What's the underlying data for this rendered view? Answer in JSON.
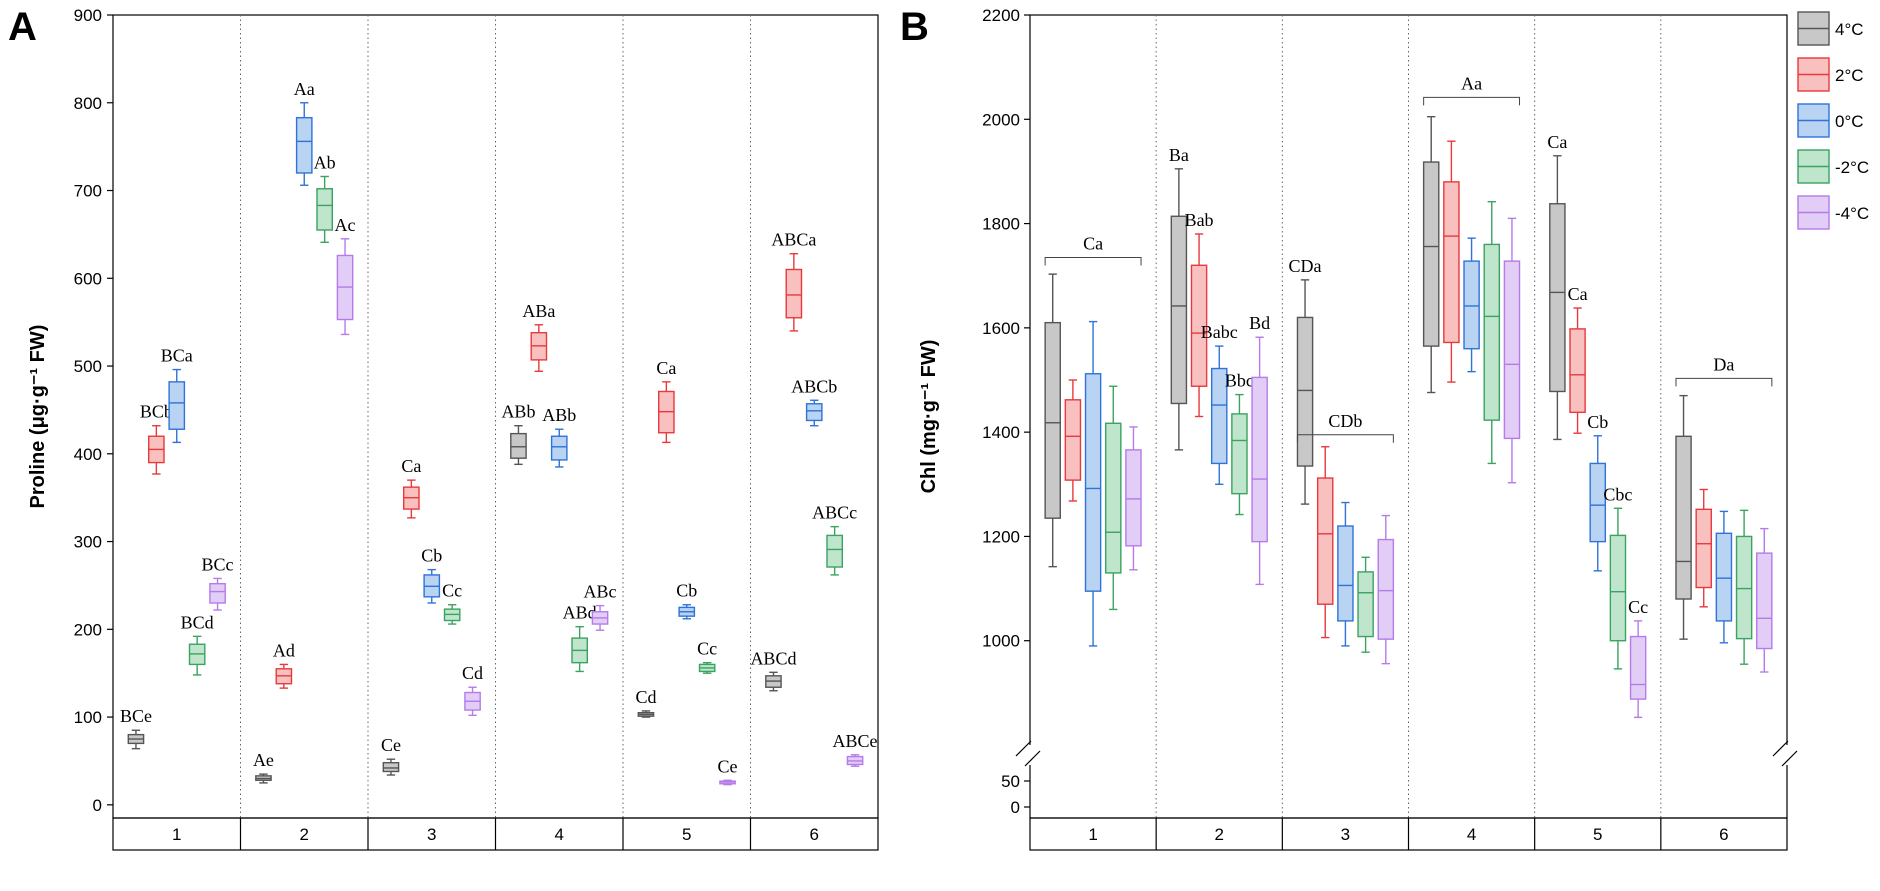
{
  "figure": {
    "panel_a": "A",
    "panel_b": "B"
  },
  "colors": {
    "4C": {
      "edge": "#555555",
      "fill": "#c8c8c8"
    },
    "2C": {
      "edge": "#e8393c",
      "fill": "#f9c0c0"
    },
    "0C": {
      "edge": "#2f73d8",
      "fill": "#b9d3f3"
    },
    "m2C": {
      "edge": "#3aa35f",
      "fill": "#bfe6cd"
    },
    "m4C": {
      "edge": "#b57be8",
      "fill": "#e2cdf6"
    }
  },
  "legend": {
    "entries": [
      {
        "label": "4°C",
        "key": "4C"
      },
      {
        "label": "2°C",
        "key": "2C"
      },
      {
        "label": "0°C",
        "key": "0C"
      },
      {
        "label": "-2°C",
        "key": "m2C"
      },
      {
        "label": "-4°C",
        "key": "m4C"
      }
    ],
    "placement": "top-right"
  },
  "chart_data": [
    {
      "type": "box",
      "panel": "A",
      "ylabel": "Proline (μg·g⁻¹ FW)",
      "ylim": [
        0,
        900
      ],
      "yticks": [
        0,
        100,
        200,
        300,
        400,
        500,
        600,
        700,
        800,
        900
      ],
      "categories": [
        "1",
        "2",
        "3",
        "4",
        "5",
        "6"
      ],
      "series_keys": [
        "4C",
        "2C",
        "0C",
        "m2C",
        "m4C"
      ],
      "boxes": [
        {
          "group": "1",
          "key": "4C",
          "q": [
            64,
            70,
            75,
            80,
            85
          ],
          "label": "BCe"
        },
        {
          "group": "1",
          "key": "2C",
          "q": [
            377,
            390,
            405,
            420,
            432
          ],
          "label": "BCb"
        },
        {
          "group": "1",
          "key": "0C",
          "q": [
            413,
            428,
            458,
            482,
            496
          ],
          "label": "BCa"
        },
        {
          "group": "1",
          "key": "m2C",
          "q": [
            148,
            160,
            172,
            183,
            192
          ],
          "label": "BCd"
        },
        {
          "group": "1",
          "key": "m4C",
          "q": [
            222,
            230,
            243,
            252,
            258
          ],
          "label": "BCc"
        },
        {
          "group": "2",
          "key": "4C",
          "q": [
            25,
            28,
            30,
            33,
            35
          ],
          "label": "Ae"
        },
        {
          "group": "2",
          "key": "2C",
          "q": [
            133,
            138,
            147,
            155,
            160
          ],
          "label": "Ad"
        },
        {
          "group": "2",
          "key": "0C",
          "q": [
            706,
            720,
            756,
            783,
            800
          ],
          "label": "Aa"
        },
        {
          "group": "2",
          "key": "m2C",
          "q": [
            641,
            655,
            683,
            702,
            716
          ],
          "label": "Ab"
        },
        {
          "group": "2",
          "key": "m4C",
          "q": [
            536,
            553,
            590,
            626,
            645
          ],
          "label": "Ac"
        },
        {
          "group": "3",
          "key": "4C",
          "q": [
            34,
            38,
            42,
            48,
            52
          ],
          "label": "Ce"
        },
        {
          "group": "3",
          "key": "2C",
          "q": [
            327,
            337,
            350,
            362,
            370
          ],
          "label": "Ca"
        },
        {
          "group": "3",
          "key": "0C",
          "q": [
            230,
            237,
            249,
            262,
            268
          ],
          "label": "Cb"
        },
        {
          "group": "3",
          "key": "m2C",
          "q": [
            206,
            210,
            217,
            223,
            228
          ],
          "label": "Cc"
        },
        {
          "group": "3",
          "key": "m4C",
          "q": [
            102,
            108,
            118,
            128,
            134
          ],
          "label": "Cd"
        },
        {
          "group": "4",
          "key": "4C",
          "q": [
            388,
            395,
            408,
            423,
            432
          ],
          "label": "ABb"
        },
        {
          "group": "4",
          "key": "2C",
          "q": [
            494,
            507,
            523,
            538,
            547
          ],
          "label": "ABa"
        },
        {
          "group": "4",
          "key": "0C",
          "q": [
            385,
            393,
            408,
            420,
            428
          ],
          "label": "ABb"
        },
        {
          "group": "4",
          "key": "m2C",
          "q": [
            152,
            162,
            176,
            190,
            203
          ],
          "label": "ABd"
        },
        {
          "group": "4",
          "key": "m4C",
          "q": [
            199,
            206,
            213,
            220,
            227
          ],
          "label": "ABc"
        },
        {
          "group": "5",
          "key": "4C",
          "q": [
            100,
            101,
            103,
            105,
            107
          ],
          "label": "Cd"
        },
        {
          "group": "5",
          "key": "2C",
          "q": [
            413,
            424,
            448,
            471,
            482
          ],
          "label": "Ca"
        },
        {
          "group": "5",
          "key": "0C",
          "q": [
            212,
            215,
            220,
            225,
            228
          ],
          "label": "Cb"
        },
        {
          "group": "5",
          "key": "m2C",
          "q": [
            150,
            152,
            156,
            160,
            162
          ],
          "label": "Cc"
        },
        {
          "group": "5",
          "key": "m4C",
          "q": [
            23,
            24,
            26,
            27,
            28
          ],
          "label": "Ce"
        },
        {
          "group": "6",
          "key": "4C",
          "q": [
            130,
            134,
            141,
            147,
            151
          ],
          "label": "ABCd"
        },
        {
          "group": "6",
          "key": "2C",
          "q": [
            540,
            555,
            581,
            610,
            628
          ],
          "label": "ABCa"
        },
        {
          "group": "6",
          "key": "0C",
          "q": [
            432,
            438,
            449,
            457,
            461
          ],
          "label": "ABCb"
        },
        {
          "group": "6",
          "key": "m2C",
          "q": [
            262,
            271,
            291,
            307,
            317
          ],
          "label": "ABCc"
        },
        {
          "group": "6",
          "key": "m4C",
          "q": [
            44,
            46,
            50,
            55,
            57
          ],
          "label": "ABCe"
        }
      ]
    },
    {
      "type": "box",
      "panel": "B",
      "ylabel": "Chl (mg·g⁻¹ FW)",
      "ylim_upper": [
        800,
        2200
      ],
      "ylim_lower": [
        0,
        50
      ],
      "axis_break": "between 50 and 800",
      "yticks_upper": [
        1000,
        1200,
        1400,
        1600,
        1800,
        2000,
        2200
      ],
      "yticks_lower": [
        0,
        50
      ],
      "categories": [
        "1",
        "2",
        "3",
        "4",
        "5",
        "6"
      ],
      "series_keys": [
        "4C",
        "2C",
        "0C",
        "m2C",
        "m4C"
      ],
      "group_labels": [
        {
          "group": "1",
          "label": "Ca",
          "y": 1735
        },
        {
          "group": "3",
          "label": "CDb",
          "y": 1395
        },
        {
          "group": "4",
          "label": "Aa",
          "y": 2042
        },
        {
          "group": "6",
          "label": "Da",
          "y": 1503
        }
      ],
      "boxes": [
        {
          "group": "1",
          "key": "4C",
          "q": [
            1142,
            1235,
            1418,
            1610,
            1703
          ],
          "label": ""
        },
        {
          "group": "1",
          "key": "2C",
          "q": [
            1268,
            1308,
            1392,
            1462,
            1500
          ],
          "label": ""
        },
        {
          "group": "1",
          "key": "0C",
          "q": [
            990,
            1095,
            1292,
            1512,
            1612
          ],
          "label": ""
        },
        {
          "group": "1",
          "key": "m2C",
          "q": [
            1060,
            1130,
            1208,
            1417,
            1488
          ],
          "label": ""
        },
        {
          "group": "1",
          "key": "m4C",
          "q": [
            1136,
            1182,
            1272,
            1366,
            1410
          ],
          "label": ""
        },
        {
          "group": "2",
          "key": "4C",
          "q": [
            1366,
            1455,
            1642,
            1814,
            1905
          ],
          "label": "Ba"
        },
        {
          "group": "2",
          "key": "2C",
          "q": [
            1430,
            1488,
            1590,
            1720,
            1780
          ],
          "label": "Bab"
        },
        {
          "group": "2",
          "key": "0C",
          "q": [
            1300,
            1340,
            1452,
            1522,
            1565
          ],
          "label": "Babc"
        },
        {
          "group": "2",
          "key": "m2C",
          "q": [
            1242,
            1282,
            1384,
            1435,
            1472
          ],
          "label": "Bbc"
        },
        {
          "group": "2",
          "key": "m4C",
          "q": [
            1108,
            1190,
            1310,
            1505,
            1582
          ],
          "label": "Bd"
        },
        {
          "group": "3",
          "key": "4C",
          "q": [
            1262,
            1335,
            1480,
            1620,
            1692
          ],
          "label": "CDa"
        },
        {
          "group": "3",
          "key": "2C",
          "q": [
            1006,
            1070,
            1205,
            1312,
            1372
          ],
          "label": ""
        },
        {
          "group": "3",
          "key": "0C",
          "q": [
            990,
            1038,
            1106,
            1220,
            1265
          ],
          "label": ""
        },
        {
          "group": "3",
          "key": "m2C",
          "q": [
            978,
            1008,
            1092,
            1132,
            1160
          ],
          "label": ""
        },
        {
          "group": "3",
          "key": "m4C",
          "q": [
            956,
            1003,
            1096,
            1194,
            1240
          ],
          "label": ""
        },
        {
          "group": "4",
          "key": "4C",
          "q": [
            1476,
            1565,
            1756,
            1918,
            2005
          ],
          "label": ""
        },
        {
          "group": "4",
          "key": "2C",
          "q": [
            1496,
            1572,
            1776,
            1880,
            1958
          ],
          "label": ""
        },
        {
          "group": "4",
          "key": "0C",
          "q": [
            1516,
            1560,
            1642,
            1728,
            1772
          ],
          "label": ""
        },
        {
          "group": "4",
          "key": "m2C",
          "q": [
            1340,
            1423,
            1622,
            1760,
            1842
          ],
          "label": ""
        },
        {
          "group": "4",
          "key": "m4C",
          "q": [
            1303,
            1388,
            1530,
            1728,
            1810
          ],
          "label": ""
        },
        {
          "group": "5",
          "key": "4C",
          "q": [
            1386,
            1478,
            1668,
            1838,
            1930
          ],
          "label": "Ca"
        },
        {
          "group": "5",
          "key": "2C",
          "q": [
            1398,
            1438,
            1510,
            1598,
            1638
          ],
          "label": "Ca"
        },
        {
          "group": "5",
          "key": "0C",
          "q": [
            1134,
            1190,
            1260,
            1340,
            1393
          ],
          "label": "Cb"
        },
        {
          "group": "5",
          "key": "m2C",
          "q": [
            946,
            1000,
            1094,
            1202,
            1254
          ],
          "label": "Cbc"
        },
        {
          "group": "5",
          "key": "m4C",
          "q": [
            853,
            888,
            916,
            1008,
            1038
          ],
          "label": "Cc"
        },
        {
          "group": "6",
          "key": "4C",
          "q": [
            1003,
            1080,
            1152,
            1392,
            1470
          ],
          "label": ""
        },
        {
          "group": "6",
          "key": "2C",
          "q": [
            1065,
            1102,
            1186,
            1252,
            1290
          ],
          "label": ""
        },
        {
          "group": "6",
          "key": "0C",
          "q": [
            996,
            1038,
            1120,
            1206,
            1248
          ],
          "label": ""
        },
        {
          "group": "6",
          "key": "m2C",
          "q": [
            955,
            1004,
            1100,
            1200,
            1250
          ],
          "label": ""
        },
        {
          "group": "6",
          "key": "m4C",
          "q": [
            940,
            985,
            1043,
            1168,
            1215
          ],
          "label": ""
        }
      ]
    }
  ]
}
